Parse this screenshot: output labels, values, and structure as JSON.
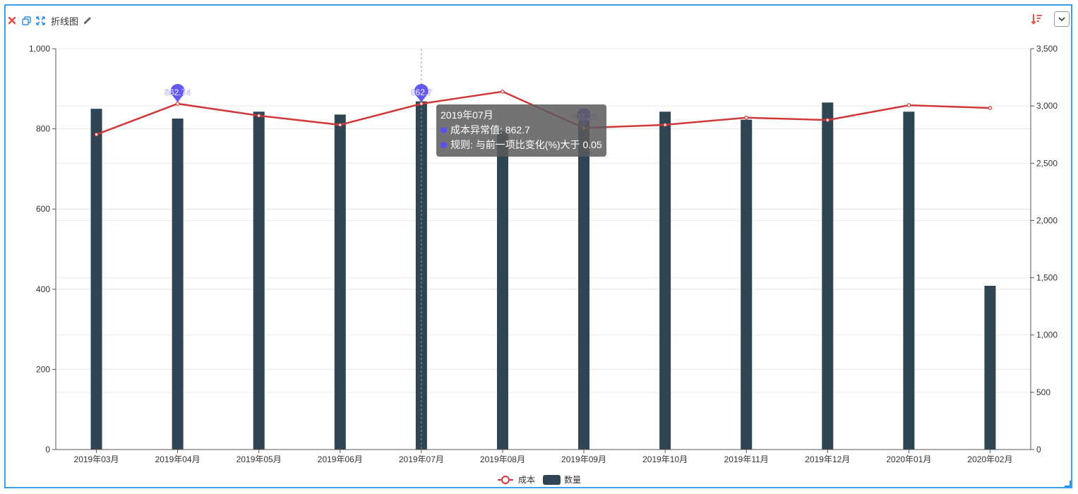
{
  "toolbar": {
    "title": "折线图"
  },
  "colors": {
    "frame": "#3aa0e8",
    "bar": "#2f4554",
    "line": "#d0393b",
    "marker": "#5b4ff0",
    "tooltip_bg": "#6e6e6e",
    "close": "#e04848",
    "icon_blue": "#2b8ee6",
    "sort": "#e0483a"
  },
  "tooltip": {
    "header": "2019年07月",
    "line1": "成本异常值: 862.7",
    "line2": "规则: 与前一项比变化(%)大于 0.05"
  },
  "chart_data": {
    "type": "bar+line",
    "categories": [
      "2019年03月",
      "2019年04月",
      "2019年05月",
      "2019年06月",
      "2019年07月",
      "2019年08月",
      "2019年09月",
      "2019年10月",
      "2019年11月",
      "2019年12月",
      "2020年01月",
      "2020年02月"
    ],
    "series": [
      {
        "name": "成本",
        "type": "line",
        "axis": "left",
        "values": [
          786,
          862.74,
          833,
          810,
          862.7,
          893,
          802.28,
          810,
          828,
          822,
          859,
          852
        ]
      },
      {
        "name": "数量",
        "type": "bar",
        "axis": "right",
        "values": [
          2975,
          2890,
          2950,
          2925,
          3040,
          2780,
          2870,
          2950,
          2880,
          3030,
          2950,
          1430
        ]
      }
    ],
    "left_axis": {
      "min": 0,
      "max": 1000,
      "ticks": [
        "0",
        "200",
        "400",
        "600",
        "800",
        "1,000"
      ]
    },
    "right_axis": {
      "min": 0,
      "max": 3500,
      "ticks": [
        "0",
        "500",
        "1,000",
        "1,500",
        "2,000",
        "2,500",
        "3,000",
        "3,500"
      ]
    },
    "anomaly_points": [
      {
        "index": 1,
        "label": "862.74"
      },
      {
        "index": 4,
        "label": "862.7"
      },
      {
        "index": 6,
        "label": "802.28"
      }
    ],
    "hover_index": 4,
    "legend": {
      "position": "bottom-center",
      "items": [
        "成本",
        "数量"
      ]
    },
    "grid": true
  }
}
